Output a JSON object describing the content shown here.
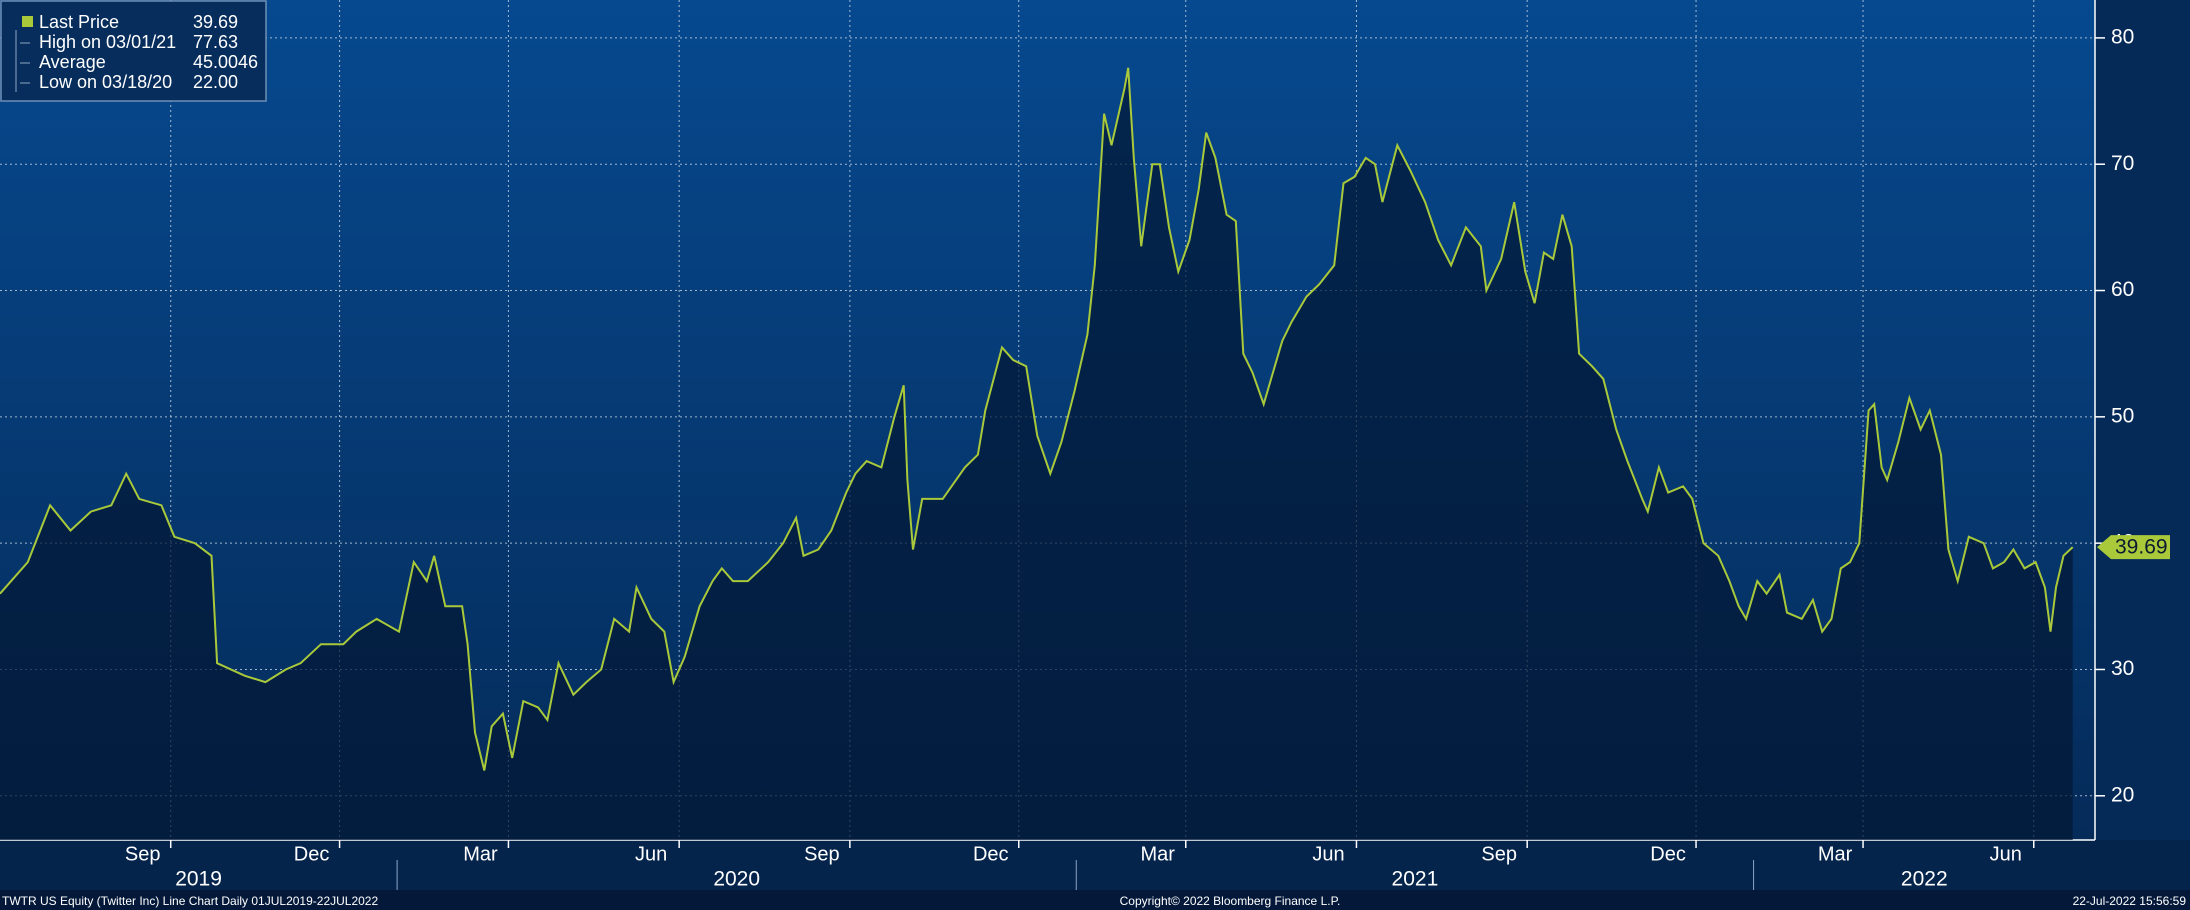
{
  "chart_data": {
    "type": "line",
    "x": [
      "2019-06-01",
      "2019-06-16",
      "2019-06-28",
      "2019-07-09",
      "2019-07-20",
      "2019-07-31",
      "2019-08-08",
      "2019-08-15",
      "2019-08-27",
      "2019-09-03",
      "2019-09-14",
      "2019-09-23",
      "2019-09-26",
      "2019-10-11",
      "2019-10-22",
      "2019-11-02",
      "2019-11-10",
      "2019-11-21",
      "2019-12-03",
      "2019-12-10",
      "2019-12-21",
      "2020-01-02",
      "2020-01-10",
      "2020-01-17",
      "2020-01-21",
      "2020-01-27",
      "2020-02-05",
      "2020-02-08",
      "2020-02-12",
      "2020-02-17",
      "2020-02-21",
      "2020-02-27",
      "2020-03-03",
      "2020-03-09",
      "2020-03-17",
      "2020-03-22",
      "2020-03-28",
      "2020-04-05",
      "2020-04-12",
      "2020-04-20",
      "2020-04-27",
      "2020-05-05",
      "2020-05-09",
      "2020-05-17",
      "2020-05-24",
      "2020-05-29",
      "2020-06-04",
      "2020-06-12",
      "2020-06-19",
      "2020-06-24",
      "2020-06-30",
      "2020-07-08",
      "2020-07-19",
      "2020-07-27",
      "2020-08-03",
      "2020-08-07",
      "2020-08-15",
      "2020-08-22",
      "2020-08-30",
      "2020-09-04",
      "2020-09-10",
      "2020-09-18",
      "2020-09-25",
      "2020-09-30",
      "2020-10-02",
      "2020-10-05",
      "2020-10-10",
      "2020-10-21",
      "2020-11-02",
      "2020-11-09",
      "2020-11-13",
      "2020-11-22",
      "2020-11-28",
      "2020-12-05",
      "2020-12-11",
      "2020-12-18",
      "2020-12-24",
      "2020-12-31",
      "2021-01-07",
      "2021-01-11",
      "2021-01-16",
      "2021-01-20",
      "2021-01-27",
      "2021-01-29",
      "2021-02-01",
      "2021-02-05",
      "2021-02-11",
      "2021-02-15",
      "2021-02-20",
      "2021-02-25",
      "2021-03-03",
      "2021-03-08",
      "2021-03-12",
      "2021-03-17",
      "2021-03-23",
      "2021-03-28",
      "2021-04-01",
      "2021-04-06",
      "2021-04-12",
      "2021-04-16",
      "2021-04-22",
      "2021-04-27",
      "2021-05-05",
      "2021-05-12",
      "2021-05-20",
      "2021-05-25",
      "2021-05-31",
      "2021-06-06",
      "2021-06-11",
      "2021-06-15",
      "2021-06-23",
      "2021-06-30",
      "2021-07-08",
      "2021-07-15",
      "2021-07-22",
      "2021-07-30",
      "2021-08-07",
      "2021-08-10",
      "2021-08-18",
      "2021-08-25",
      "2021-08-31",
      "2021-09-05",
      "2021-09-10",
      "2021-09-15",
      "2021-09-20",
      "2021-09-25",
      "2021-09-29",
      "2021-10-06",
      "2021-10-12",
      "2021-10-19",
      "2021-10-25",
      "2021-11-02",
      "2021-11-05",
      "2021-11-11",
      "2021-11-16",
      "2021-11-24",
      "2021-11-29",
      "2021-12-05",
      "2021-12-13",
      "2021-12-19",
      "2021-12-24",
      "2021-12-28",
      "2022-01-03",
      "2022-01-08",
      "2022-01-15",
      "2022-01-19",
      "2022-01-27",
      "2022-02-02",
      "2022-02-07",
      "2022-02-12",
      "2022-02-17",
      "2022-02-22",
      "2022-02-27",
      "2022-03-04",
      "2022-03-07",
      "2022-03-11",
      "2022-03-14",
      "2022-03-20",
      "2022-03-26",
      "2022-04-01",
      "2022-04-06",
      "2022-04-12",
      "2022-04-16",
      "2022-04-21",
      "2022-04-27",
      "2022-05-05",
      "2022-05-10",
      "2022-05-16",
      "2022-05-21",
      "2022-05-27",
      "2022-06-02",
      "2022-06-07",
      "2022-06-10",
      "2022-06-13",
      "2022-06-17",
      "2022-06-22"
    ],
    "series": [
      {
        "name": "Last Price",
        "color": "#a9c93b",
        "last_value": 39.69,
        "values": [
          36,
          38.5,
          43,
          41,
          42.5,
          43,
          45.5,
          43.5,
          43,
          40.5,
          40,
          39,
          30.5,
          29.5,
          29,
          30,
          30.5,
          32,
          32,
          33,
          34,
          33,
          38.5,
          37,
          39,
          35,
          35,
          32,
          25,
          22,
          25.5,
          26.5,
          23,
          27.5,
          27,
          26,
          30.5,
          28,
          29,
          30,
          34,
          33,
          36.5,
          34,
          33,
          29,
          31,
          35,
          37,
          38,
          37,
          37,
          38.5,
          40,
          42,
          39,
          39.5,
          41,
          44,
          45.5,
          46.5,
          46,
          50,
          52.5,
          45,
          39.5,
          43.5,
          43.5,
          46,
          47,
          50.5,
          55.5,
          54.5,
          54,
          48.5,
          45.5,
          48,
          52,
          56.5,
          62,
          74,
          71.5,
          76,
          77.63,
          70.5,
          63.5,
          70,
          70,
          65,
          61.5,
          64,
          68,
          72.5,
          70.5,
          66,
          65.5,
          55,
          53.5,
          51,
          53,
          56,
          57.5,
          59.5,
          60.5,
          62,
          68.5,
          69,
          70.5,
          70,
          67,
          71.5,
          69.5,
          67,
          64,
          62,
          65,
          63.5,
          60,
          62.5,
          67,
          61.5,
          59,
          63,
          62.5,
          66,
          63.5,
          55,
          54,
          53,
          49,
          46.5,
          43.5,
          42.5,
          46,
          44,
          44.5,
          43.5,
          40,
          39,
          37,
          35,
          34,
          37,
          36,
          37.5,
          34.5,
          34,
          35.5,
          33,
          34,
          38,
          38.5,
          40,
          50.5,
          51,
          46,
          45,
          48,
          51.5,
          49,
          50.5,
          47,
          39.5,
          37,
          40.5,
          40,
          38,
          38.5,
          39.5,
          38,
          38.5,
          36.5,
          33,
          36.5,
          39,
          39.69
        ]
      }
    ],
    "stats": [
      {
        "name": "High on 03/01/21",
        "value": 77.63
      },
      {
        "name": "Average",
        "value": 45.0046
      },
      {
        "name": "Low on 03/18/20",
        "value": 22,
        "value_label": "22.00"
      }
    ],
    "xlim": [
      "2019-06-01",
      "2022-07-04"
    ],
    "xticks": [
      {
        "value": "2019-09-01",
        "label": "Sep"
      },
      {
        "value": "2019-12-01",
        "label": "Dec"
      },
      {
        "value": "2020-03-01",
        "label": "Mar"
      },
      {
        "value": "2020-06-01",
        "label": "Jun"
      },
      {
        "value": "2020-09-01",
        "label": "Sep"
      },
      {
        "value": "2020-12-01",
        "label": "Dec"
      },
      {
        "value": "2021-03-01",
        "label": "Mar"
      },
      {
        "value": "2021-06-01",
        "label": "Jun"
      },
      {
        "value": "2021-09-01",
        "label": "Sep"
      },
      {
        "value": "2021-12-01",
        "label": "Dec"
      },
      {
        "value": "2022-03-01",
        "label": "Mar"
      },
      {
        "value": "2022-06-01",
        "label": "Jun"
      }
    ],
    "years": [
      "2019",
      "2020",
      "2021",
      "2022"
    ],
    "ylim": [
      16.5,
      83
    ],
    "yticks": [
      20,
      30,
      40,
      50,
      60,
      70,
      80
    ],
    "grid": true,
    "footer": {
      "left": "TWTR US Equity (Twitter Inc) Line Chart  Daily 01JUL2019-22JUL2022",
      "center": "Copyright© 2022 Bloomberg Finance L.P.",
      "right": "22-Jul-2022 15:56:59"
    }
  }
}
